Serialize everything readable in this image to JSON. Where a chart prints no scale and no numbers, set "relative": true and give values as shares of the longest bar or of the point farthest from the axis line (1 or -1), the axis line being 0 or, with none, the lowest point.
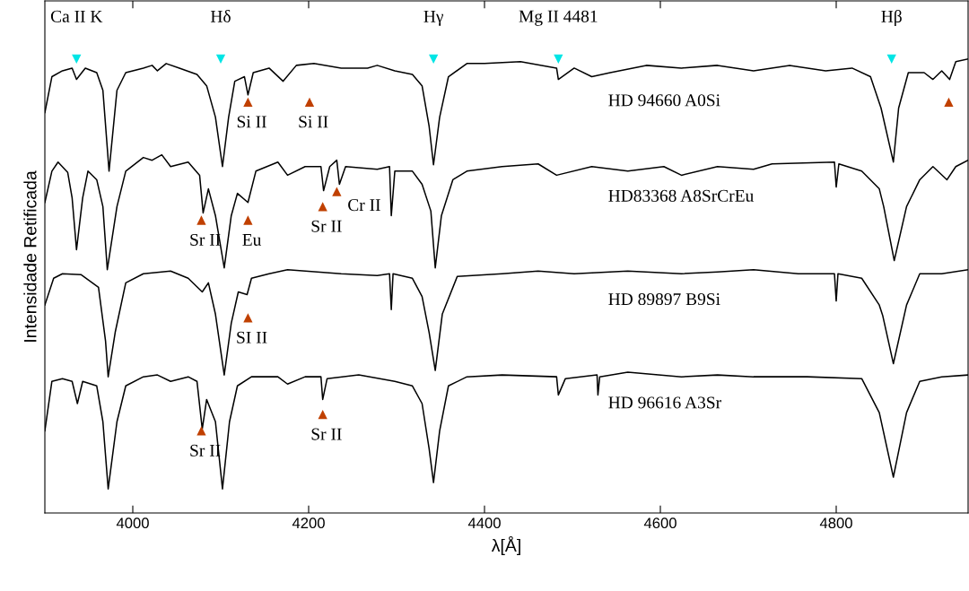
{
  "chart_data": {
    "type": "line",
    "relative": true,
    "xlabel": "λ[Å]",
    "ylabel": "Intensidade Retificada",
    "xlim": [
      3900,
      4950
    ],
    "xticks": [
      4000,
      4200,
      4400,
      4600,
      4800
    ],
    "grid": false,
    "legend": false,
    "tick_labels": "x",
    "line_style": "solid",
    "series": [
      {
        "name": "HD 94660 A0Si",
        "color": "#000000",
        "x": [
          3900,
          3908,
          3920,
          3931,
          3936,
          3946,
          3959,
          3966,
          3973,
          3982,
          3992,
          4012,
          4022,
          4028,
          4038,
          4053,
          4073,
          4084,
          4094,
          4102,
          4109,
          4116,
          4127,
          4131,
          4137,
          4155,
          4171,
          4186,
          4206,
          4237,
          4267,
          4278,
          4298,
          4318,
          4329,
          4337,
          4342,
          4349,
          4359,
          4380,
          4400,
          4441,
          4482,
          4484,
          4502,
          4522,
          4543,
          4584,
          4624,
          4665,
          4706,
          4747,
          4788,
          4818,
          4839,
          4851,
          4865,
          4871,
          4882,
          4900,
          4910,
          4920,
          4929,
          4936,
          4950
        ],
        "values": [
          0.882,
          0.961,
          0.974,
          0.98,
          0.955,
          0.98,
          0.97,
          0.931,
          0.753,
          0.931,
          0.97,
          0.98,
          0.986,
          0.974,
          0.99,
          0.98,
          0.966,
          0.941,
          0.872,
          0.763,
          0.872,
          0.951,
          0.961,
          0.921,
          0.97,
          0.98,
          0.951,
          0.986,
          0.99,
          0.98,
          0.98,
          0.986,
          0.974,
          0.966,
          0.941,
          0.852,
          0.767,
          0.872,
          0.961,
          0.99,
          0.99,
          0.994,
          0.98,
          0.955,
          0.98,
          0.961,
          0.97,
          0.986,
          0.98,
          0.986,
          0.974,
          0.986,
          0.974,
          0.98,
          0.961,
          0.892,
          0.773,
          0.892,
          0.97,
          0.97,
          0.955,
          0.974,
          0.955,
          0.994,
          1.0
        ]
      },
      {
        "name": "HD83368 A8SrCrEu",
        "color": "#000000",
        "x": [
          3900,
          3908,
          3915,
          3926,
          3931,
          3936,
          3943,
          3949,
          3959,
          3966,
          3971,
          3982,
          3992,
          4012,
          4022,
          4033,
          4043,
          4063,
          4076,
          4080,
          4086,
          4094,
          4104,
          4112,
          4119,
          4131,
          4140,
          4165,
          4176,
          4196,
          4214,
          4217,
          4224,
          4232,
          4235,
          4242,
          4278,
          4292,
          4294,
          4298,
          4318,
          4329,
          4339,
          4344,
          4351,
          4364,
          4380,
          4420,
          4461,
          4482,
          4522,
          4563,
          4604,
          4624,
          4665,
          4706,
          4727,
          4798,
          4800,
          4803,
          4829,
          4849,
          4854,
          4866,
          4880,
          4895,
          4910,
          4926,
          4936,
          4950
        ],
        "values": [
          0.684,
          0.753,
          0.773,
          0.75,
          0.694,
          0.58,
          0.694,
          0.753,
          0.734,
          0.675,
          0.536,
          0.675,
          0.753,
          0.783,
          0.777,
          0.789,
          0.763,
          0.773,
          0.744,
          0.661,
          0.714,
          0.655,
          0.54,
          0.655,
          0.704,
          0.684,
          0.753,
          0.773,
          0.744,
          0.763,
          0.763,
          0.71,
          0.763,
          0.777,
          0.724,
          0.763,
          0.757,
          0.763,
          0.655,
          0.753,
          0.753,
          0.724,
          0.665,
          0.54,
          0.655,
          0.734,
          0.753,
          0.763,
          0.769,
          0.744,
          0.763,
          0.753,
          0.763,
          0.744,
          0.763,
          0.757,
          0.769,
          0.773,
          0.718,
          0.769,
          0.753,
          0.714,
          0.675,
          0.556,
          0.675,
          0.734,
          0.763,
          0.734,
          0.763,
          0.777
        ]
      },
      {
        "name": "HD 89897 B9Si",
        "color": "#000000",
        "x": [
          3900,
          3910,
          3920,
          3941,
          3961,
          3969,
          3972,
          3980,
          3992,
          4012,
          4043,
          4063,
          4079,
          4086,
          4094,
          4104,
          4112,
          4120,
          4130,
          4135,
          4155,
          4176,
          4237,
          4278,
          4292,
          4294,
          4296,
          4318,
          4329,
          4337,
          4344,
          4352,
          4369,
          4420,
          4461,
          4502,
          4563,
          4624,
          4665,
          4706,
          4757,
          4798,
          4800,
          4802,
          4829,
          4849,
          4853,
          4865,
          4880,
          4895,
          4920,
          4950
        ],
        "values": [
          0.458,
          0.517,
          0.527,
          0.525,
          0.497,
          0.379,
          0.3,
          0.398,
          0.507,
          0.527,
          0.533,
          0.517,
          0.487,
          0.507,
          0.438,
          0.304,
          0.418,
          0.487,
          0.481,
          0.517,
          0.527,
          0.536,
          0.527,
          0.523,
          0.527,
          0.448,
          0.527,
          0.517,
          0.477,
          0.398,
          0.314,
          0.438,
          0.521,
          0.527,
          0.533,
          0.527,
          0.533,
          0.527,
          0.531,
          0.536,
          0.527,
          0.527,
          0.467,
          0.527,
          0.517,
          0.458,
          0.434,
          0.329,
          0.458,
          0.527,
          0.527,
          0.536
        ]
      },
      {
        "name": "HD 96616 A3Sr",
        "color": "#000000",
        "x": [
          3900,
          3908,
          3920,
          3931,
          3937,
          3943,
          3959,
          3966,
          3972,
          3982,
          3992,
          4012,
          4028,
          4043,
          4063,
          4073,
          4079,
          4084,
          4094,
          4102,
          4110,
          4119,
          4135,
          4165,
          4176,
          4196,
          4214,
          4216,
          4221,
          4257,
          4298,
          4318,
          4329,
          4337,
          4342,
          4349,
          4359,
          4380,
          4420,
          4482,
          4484,
          4492,
          4528,
          4529,
          4531,
          4563,
          4624,
          4665,
          4706,
          4767,
          4829,
          4849,
          4865,
          4880,
          4895,
          4920,
          4950
        ],
        "values": [
          0.181,
          0.29,
          0.296,
          0.29,
          0.241,
          0.29,
          0.28,
          0.201,
          0.053,
          0.201,
          0.28,
          0.3,
          0.304,
          0.29,
          0.3,
          0.29,
          0.185,
          0.25,
          0.201,
          0.053,
          0.201,
          0.28,
          0.3,
          0.3,
          0.284,
          0.3,
          0.3,
          0.25,
          0.296,
          0.304,
          0.29,
          0.28,
          0.241,
          0.142,
          0.067,
          0.181,
          0.28,
          0.3,
          0.304,
          0.3,
          0.26,
          0.296,
          0.304,
          0.26,
          0.3,
          0.31,
          0.3,
          0.304,
          0.3,
          0.3,
          0.296,
          0.221,
          0.079,
          0.221,
          0.29,
          0.3,
          0.304
        ]
      },
      {
        "type": "scatter",
        "marker": "triangle-down",
        "color": "#00e5e5",
        "x": [
          3936,
          4100,
          4342,
          4484,
          4863
        ],
        "values": [
          1.0,
          1.0,
          1.0,
          1.0,
          1.0
        ]
      },
      {
        "type": "scatter",
        "marker": "triangle",
        "color": "#c04000",
        "x": [
          4131,
          4201,
          4078,
          4131,
          4216,
          4232,
          4131,
          4078,
          4216,
          4928
        ],
        "values": [
          0.905,
          0.905,
          0.645,
          0.645,
          0.675,
          0.708,
          0.43,
          0.181,
          0.217,
          0.905
        ]
      }
    ],
    "annotations": [
      {
        "text": "Ca II K",
        "x": 3936,
        "y": 1.0
      },
      {
        "text": "Hδ",
        "x": 4100,
        "y": 1.0
      },
      {
        "text": "Hγ",
        "x": 4342,
        "y": 1.0
      },
      {
        "text": "Mg II 4481",
        "x": 4484,
        "y": 1.0
      },
      {
        "text": "Hβ",
        "x": 4863,
        "y": 1.0
      },
      {
        "text": "Si II",
        "x": 4131,
        "y": 0.905
      },
      {
        "text": "Si II",
        "x": 4201,
        "y": 0.905
      },
      {
        "text": "Cr II",
        "x": 4232,
        "y": 0.708
      },
      {
        "text": "Sr II",
        "x": 4216,
        "y": 0.675
      },
      {
        "text": "Sr II",
        "x": 4078,
        "y": 0.645
      },
      {
        "text": "Eu",
        "x": 4131,
        "y": 0.645
      },
      {
        "text": "SI II",
        "x": 4131,
        "y": 0.43
      },
      {
        "text": "Sr II",
        "x": 4216,
        "y": 0.217
      },
      {
        "text": "Sr II",
        "x": 4078,
        "y": 0.181
      }
    ]
  }
}
